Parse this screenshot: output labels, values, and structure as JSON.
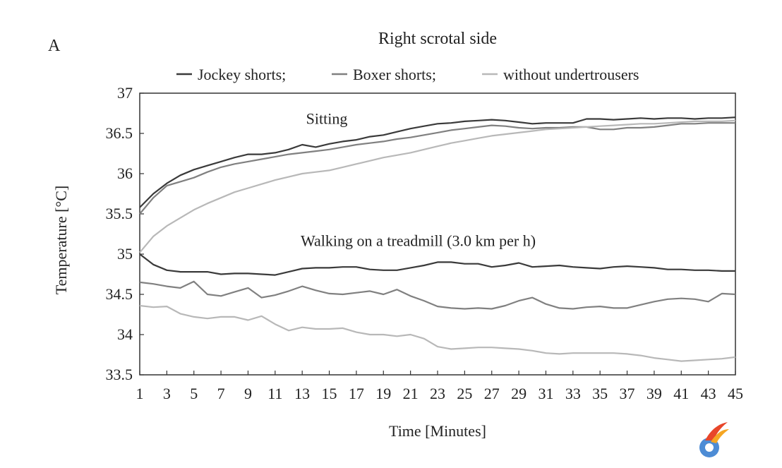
{
  "chart_data": {
    "type": "line",
    "panel_label": "A",
    "title": "Right scrotal side",
    "xlabel": "Time [Minutes]",
    "ylabel": "Temperature [°C]",
    "xlim": [
      1,
      45
    ],
    "ylim": [
      33.5,
      37
    ],
    "x_ticks": [
      "1",
      "3",
      "5",
      "7",
      "9",
      "11",
      "13",
      "15",
      "17",
      "19",
      "21",
      "23",
      "25",
      "27",
      "29",
      "31",
      "33",
      "35",
      "37",
      "39",
      "41",
      "43",
      "45"
    ],
    "y_ticks": [
      "33.5",
      "34",
      "34.5",
      "35",
      "35.5",
      "36",
      "36.5",
      "37"
    ],
    "grid": false,
    "legend": {
      "placement": "top",
      "entries": [
        {
          "label": "Jockey shorts;",
          "color": "#3a3a3a"
        },
        {
          "label": "Boxer shorts;",
          "color": "#808080"
        },
        {
          "label": "without undertrousers",
          "color": "#b8b8b8"
        }
      ]
    },
    "annotations": [
      {
        "text": "Sitting",
        "x": 14,
        "y": 36.62
      },
      {
        "text": "Walking on a treadmill (3.0 km per h)",
        "x": 13,
        "y": 35.1
      }
    ],
    "x": [
      1,
      2,
      3,
      4,
      5,
      6,
      7,
      8,
      9,
      10,
      11,
      12,
      13,
      14,
      15,
      16,
      17,
      18,
      19,
      20,
      21,
      22,
      23,
      24,
      25,
      26,
      27,
      28,
      29,
      30,
      31,
      32,
      33,
      34,
      35,
      36,
      37,
      38,
      39,
      40,
      41,
      42,
      43,
      44,
      45
    ],
    "series": [
      {
        "name": "Jockey shorts;",
        "group": "Sitting",
        "color": "#3a3a3a",
        "values": [
          35.58,
          35.75,
          35.88,
          35.98,
          36.05,
          36.1,
          36.15,
          36.2,
          36.24,
          36.24,
          36.26,
          36.3,
          36.36,
          36.33,
          36.37,
          36.4,
          36.42,
          36.46,
          36.48,
          36.52,
          36.56,
          36.59,
          36.62,
          36.63,
          36.65,
          36.66,
          36.67,
          36.66,
          36.64,
          36.62,
          36.63,
          36.63,
          36.63,
          36.68,
          36.68,
          36.67,
          36.68,
          36.69,
          36.68,
          36.69,
          36.69,
          36.68,
          36.69,
          36.69,
          36.7
        ]
      },
      {
        "name": "Boxer shorts;",
        "group": "Sitting",
        "color": "#808080",
        "values": [
          35.5,
          35.7,
          35.85,
          35.9,
          35.95,
          36.02,
          36.08,
          36.12,
          36.15,
          36.18,
          36.21,
          36.24,
          36.26,
          36.28,
          36.3,
          36.33,
          36.36,
          36.38,
          36.4,
          36.43,
          36.45,
          36.48,
          36.51,
          36.54,
          36.56,
          36.58,
          36.6,
          36.59,
          36.57,
          36.56,
          36.57,
          36.57,
          36.58,
          36.58,
          36.55,
          36.55,
          36.57,
          36.57,
          36.58,
          36.6,
          36.62,
          36.62,
          36.63,
          36.63,
          36.63
        ]
      },
      {
        "name": "without undertrousers",
        "group": "Sitting",
        "color": "#b8b8b8",
        "values": [
          35.02,
          35.22,
          35.35,
          35.45,
          35.55,
          35.63,
          35.7,
          35.77,
          35.82,
          35.87,
          35.92,
          35.96,
          36.0,
          36.02,
          36.04,
          36.08,
          36.12,
          36.16,
          36.2,
          36.23,
          36.26,
          36.3,
          36.34,
          36.38,
          36.41,
          36.44,
          36.47,
          36.49,
          36.51,
          36.53,
          36.55,
          36.56,
          36.57,
          36.58,
          36.59,
          36.6,
          36.61,
          36.62,
          36.62,
          36.63,
          36.64,
          36.65,
          36.65,
          36.65,
          36.66
        ]
      },
      {
        "name": "Jockey shorts;",
        "group": "Walking on a treadmill (3.0 km per h)",
        "color": "#3a3a3a",
        "values": [
          35.0,
          34.87,
          34.8,
          34.78,
          34.78,
          34.78,
          34.75,
          34.76,
          34.76,
          34.75,
          34.74,
          34.78,
          34.82,
          34.83,
          34.83,
          34.84,
          34.84,
          34.81,
          34.8,
          34.8,
          34.83,
          34.86,
          34.9,
          34.9,
          34.88,
          34.88,
          34.84,
          34.86,
          34.89,
          34.84,
          34.85,
          34.86,
          34.84,
          34.83,
          34.82,
          34.84,
          34.85,
          34.84,
          34.83,
          34.81,
          34.81,
          34.8,
          34.8,
          34.79,
          34.79
        ]
      },
      {
        "name": "Boxer shorts;",
        "group": "Walking on a treadmill (3.0 km per h)",
        "color": "#808080",
        "values": [
          34.65,
          34.63,
          34.6,
          34.58,
          34.66,
          34.5,
          34.48,
          34.53,
          34.58,
          34.46,
          34.49,
          34.54,
          34.6,
          34.55,
          34.51,
          34.5,
          34.52,
          34.54,
          34.5,
          34.56,
          34.48,
          34.42,
          34.35,
          34.33,
          34.32,
          34.33,
          34.32,
          34.36,
          34.42,
          34.46,
          34.38,
          34.33,
          34.32,
          34.34,
          34.35,
          34.33,
          34.33,
          34.37,
          34.41,
          34.44,
          34.45,
          34.44,
          34.41,
          34.51,
          34.5
        ]
      },
      {
        "name": "without undertrousers",
        "group": "Walking on a treadmill (3.0 km per h)",
        "color": "#b8b8b8",
        "values": [
          34.36,
          34.34,
          34.35,
          34.26,
          34.22,
          34.2,
          34.22,
          34.22,
          34.18,
          34.23,
          34.13,
          34.05,
          34.09,
          34.07,
          34.07,
          34.08,
          34.03,
          34.0,
          34.0,
          33.98,
          34.0,
          33.95,
          33.85,
          33.82,
          33.83,
          33.84,
          33.84,
          33.83,
          33.82,
          33.8,
          33.77,
          33.76,
          33.77,
          33.77,
          33.77,
          33.77,
          33.76,
          33.74,
          33.71,
          33.69,
          33.67,
          33.68,
          33.69,
          33.7,
          33.72
        ]
      }
    ]
  },
  "watermark": {
    "icon": "logo-icon"
  }
}
